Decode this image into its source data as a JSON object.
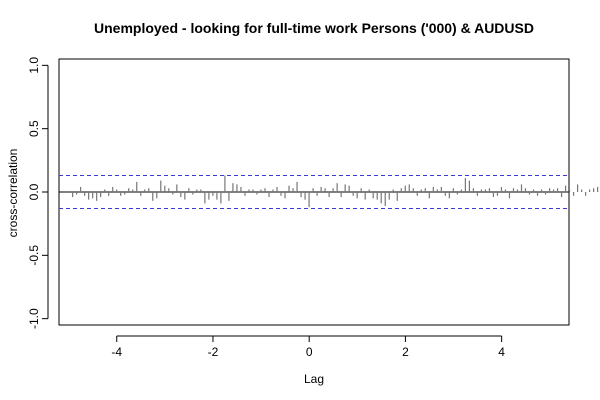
{
  "chart_data": {
    "type": "bar",
    "title": "Unemployed - looking for full-time work Persons ('000) & AUDUSD",
    "xlabel": "Lag",
    "ylabel": "cross-correlation",
    "xlim": [
      -5.2,
      5.4
    ],
    "ylim": [
      -1.05,
      1.05
    ],
    "x_ticks": [
      -4,
      -2,
      0,
      2,
      4
    ],
    "x_tick_labels": [
      "-4",
      "-2",
      "0",
      "2",
      "4"
    ],
    "y_ticks": [
      -1.0,
      -0.5,
      0.0,
      0.5,
      1.0
    ],
    "y_tick_labels": [
      "-1.0",
      "-0.5",
      "0.0",
      "0.5",
      "1.0"
    ],
    "confidence_band": 0.13,
    "lag_start": -4.917,
    "lag_step": 0.0833,
    "values": [
      -0.04,
      -0.02,
      0.04,
      -0.03,
      -0.06,
      -0.05,
      -0.07,
      -0.04,
      0.02,
      -0.03,
      0.04,
      0.02,
      -0.03,
      -0.02,
      0.03,
      0.02,
      0.08,
      -0.03,
      0.02,
      0.03,
      -0.07,
      -0.05,
      0.09,
      0.05,
      0.03,
      -0.02,
      0.06,
      -0.04,
      -0.06,
      0.03,
      -0.02,
      0.02,
      0.02,
      -0.09,
      -0.06,
      -0.03,
      -0.06,
      -0.09,
      0.13,
      -0.07,
      0.07,
      0.06,
      0.04,
      -0.03,
      0.02,
      0.02,
      -0.02,
      0.02,
      0.03,
      -0.04,
      0.02,
      0.04,
      -0.03,
      -0.05,
      0.05,
      0.03,
      0.08,
      -0.04,
      -0.06,
      -0.12,
      0.03,
      -0.03,
      0.04,
      0.03,
      -0.04,
      0.03,
      0.07,
      -0.04,
      0.06,
      0.05,
      -0.03,
      -0.05,
      0.03,
      -0.06,
      0.02,
      -0.05,
      -0.06,
      -0.09,
      -0.11,
      -0.06,
      0.02,
      -0.07,
      0.03,
      0.05,
      0.06,
      0.03,
      -0.03,
      0.02,
      0.03,
      -0.05,
      0.04,
      0.02,
      0.04,
      -0.03,
      -0.05,
      0.03,
      -0.02,
      0.02,
      0.11,
      0.09,
      0.03,
      -0.03,
      0.02,
      0.02,
      0.03,
      -0.04,
      -0.03,
      0.04,
      0.02,
      -0.05,
      0.03,
      0.02,
      0.06,
      0.03,
      -0.02,
      0.02,
      -0.03,
      0.02,
      -0.02,
      0.03,
      0.02,
      0.03,
      -0.04,
      0.05,
      0.02,
      -0.03,
      0.06,
      0.02,
      -0.03,
      0.02,
      0.03,
      0.04,
      0.02,
      -0.03,
      0.02,
      0.03,
      -0.02,
      -0.03,
      0.02,
      0.04,
      0.03,
      -0.03,
      -0.04,
      0.02,
      -0.03
    ],
    "colors": {
      "bars": "#777777",
      "zero_line": "#000000",
      "confidence": "#3b3bd4",
      "frame": "#000000"
    }
  }
}
